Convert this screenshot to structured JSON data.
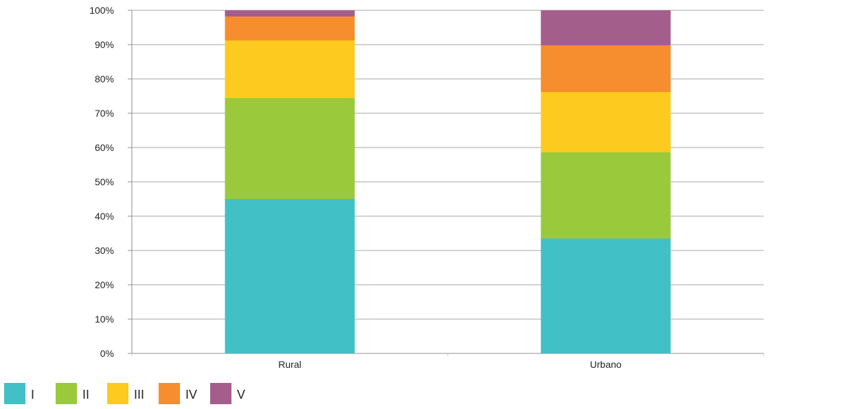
{
  "chart_data": {
    "type": "bar",
    "stacked": true,
    "percent_stacked": true,
    "title": "",
    "xlabel": "",
    "ylabel": "",
    "categories": [
      "Rural",
      "Urbano"
    ],
    "series": [
      {
        "name": "I",
        "color": "#41C0C6",
        "values": [
          45.0,
          33.5
        ]
      },
      {
        "name": "II",
        "color": "#9ACA3C",
        "values": [
          29.4,
          25.1
        ]
      },
      {
        "name": "III",
        "color": "#FDCA1F",
        "values": [
          16.8,
          17.6
        ]
      },
      {
        "name": "IV",
        "color": "#F68D2E",
        "values": [
          7.0,
          13.6
        ]
      },
      {
        "name": "V",
        "color": "#A45E8B",
        "values": [
          1.8,
          10.2
        ]
      }
    ],
    "ylim": [
      0,
      100
    ],
    "yticks": [
      0,
      10,
      20,
      30,
      40,
      50,
      60,
      70,
      80,
      90,
      100
    ],
    "ytick_labels": [
      "0%",
      "10%",
      "20%",
      "30%",
      "40%",
      "50%",
      "60%",
      "70%",
      "80%",
      "90%",
      "100%"
    ],
    "grid": true,
    "legend_position": "bottom-left"
  }
}
